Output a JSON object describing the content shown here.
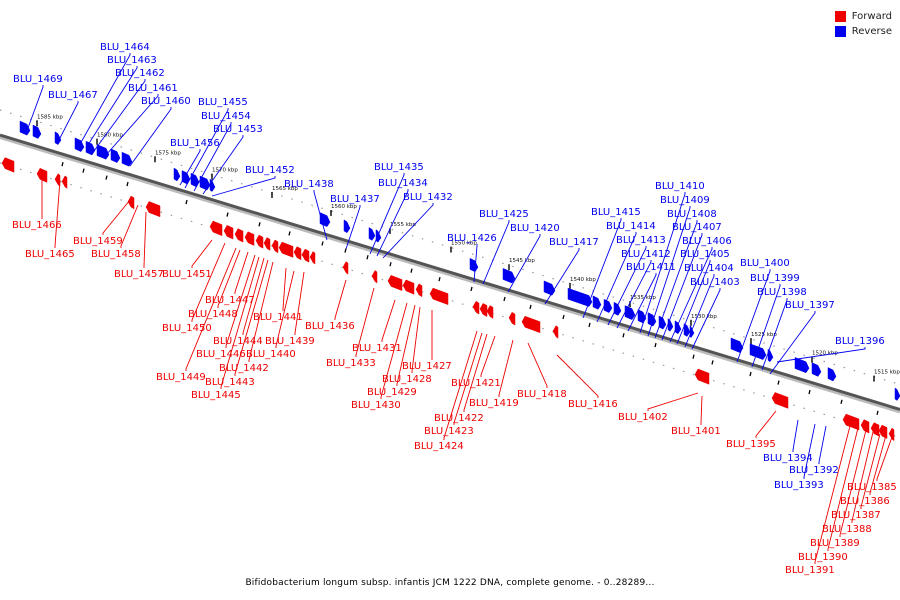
{
  "legend": {
    "forward_label": "Forward",
    "reverse_label": "Reverse",
    "forward_color": "#ee0000",
    "reverse_color": "#0000ee"
  },
  "caption": "Bifidobacterium longum subsp. infantis JCM 1222 DNA, complete genome. - 0..28289...",
  "scale_ticks": [
    "1585 kbp",
    "1580 kbp",
    "1575 kbp",
    "1570 kbp",
    "1565 kbp",
    "1560 kbp",
    "1555 kbp",
    "1550 kbp",
    "1545 kbp",
    "1540 kbp",
    "1535 kbp",
    "1530 kbp",
    "1525 kbp",
    "1520 kbp",
    "1515 kbp"
  ],
  "reverse_genes": [
    "BLU_1469",
    "BLU_1467",
    "BLU_1464",
    "BLU_1463",
    "BLU_1462",
    "BLU_1461",
    "BLU_1460",
    "BLU_1456",
    "BLU_1455",
    "BLU_1454",
    "BLU_1453",
    "BLU_1452",
    "BLU_1438",
    "BLU_1437",
    "BLU_1435",
    "BLU_1434",
    "BLU_1432",
    "BLU_1426",
    "BLU_1425",
    "BLU_1420",
    "BLU_1417",
    "BLU_1415",
    "BLU_1414",
    "BLU_1413",
    "BLU_1412",
    "BLU_1411",
    "BLU_1410",
    "BLU_1409",
    "BLU_1408",
    "BLU_1407",
    "BLU_1406",
    "BLU_1405",
    "BLU_1404",
    "BLU_1403",
    "BLU_1400",
    "BLU_1399",
    "BLU_1398",
    "BLU_1397",
    "BLU_1396",
    "BLU_1394",
    "BLU_1393",
    "BLU_1392"
  ],
  "forward_genes": [
    "BLU_1466",
    "BLU_1465",
    "BLU_1459",
    "BLU_1458",
    "BLU_1457",
    "BLU_1451",
    "BLU_1450",
    "BLU_1449",
    "BLU_1448",
    "BLU_1447",
    "BLU_1446",
    "BLU_1445",
    "BLU_1444",
    "BLU_1443",
    "BLU_1442",
    "BLU_1441",
    "BLU_1440",
    "BLU_1439",
    "BLU_1436",
    "BLU_1433",
    "BLU_1431",
    "BLU_1430",
    "BLU_1429",
    "BLU_1428",
    "BLU_1427",
    "BLU_1424",
    "BLU_1423",
    "BLU_1422",
    "BLU_1421",
    "BLU_1419",
    "BLU_1418",
    "BLU_1416",
    "BLU_1402",
    "BLU_1401",
    "BLU_1395",
    "BLU_1391",
    "BLU_1390",
    "BLU_1389",
    "BLU_1388",
    "BLU_1387",
    "BLU_1386",
    "BLU_1385"
  ]
}
